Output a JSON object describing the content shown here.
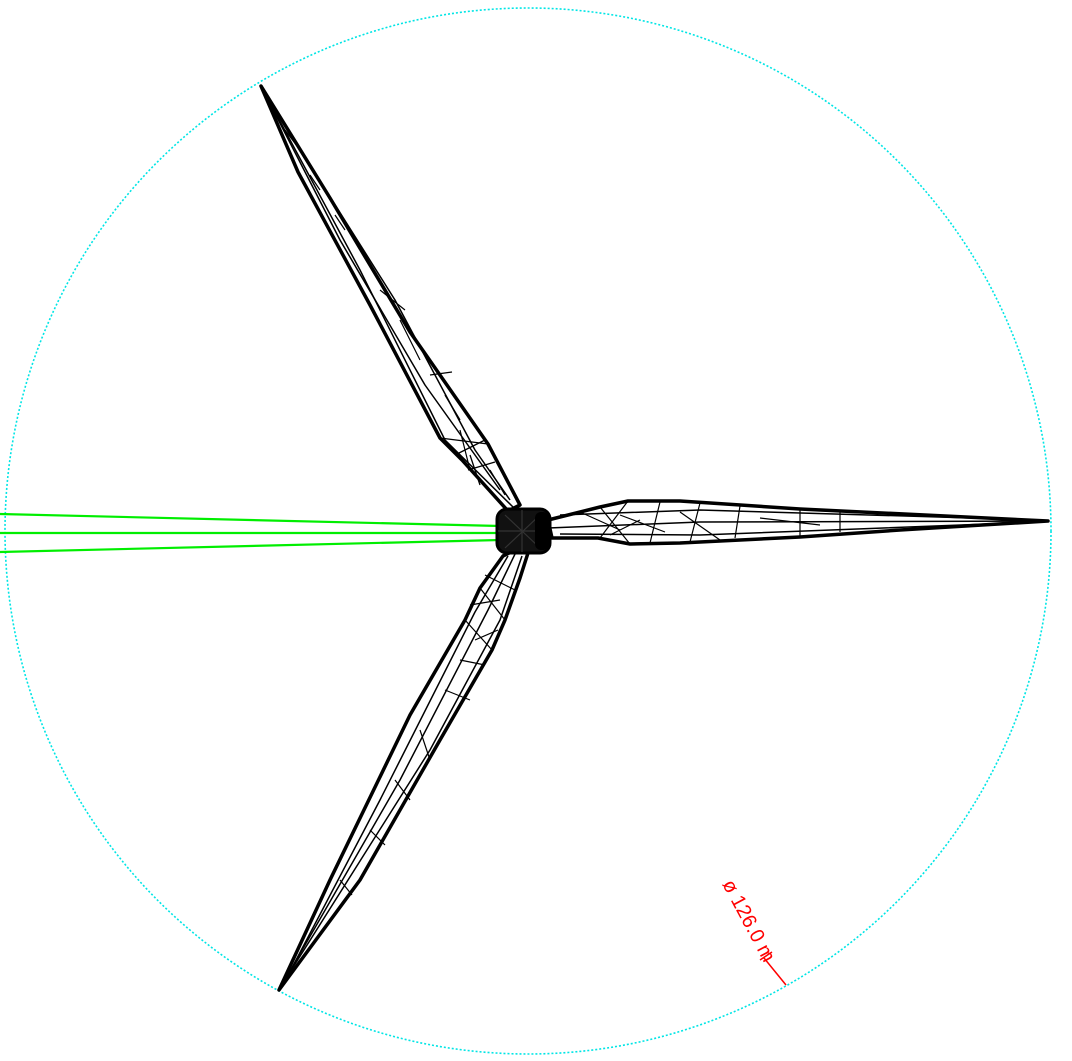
{
  "drawing": {
    "diameter_label": "ø 126.0 m",
    "colors": {
      "background": "#ffffff",
      "rotor_circle": "#00e5e5",
      "blade": "#000000",
      "tower": "#00ee00",
      "dimension": "#ff0000"
    },
    "icons": {
      "hub": "rotor-hub",
      "blade": "wireframe-blade",
      "tower": "tower-lines"
    }
  }
}
